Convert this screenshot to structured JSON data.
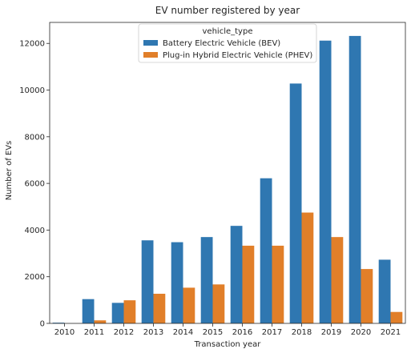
{
  "chart_data": {
    "type": "bar",
    "title": "EV number registered by year",
    "xlabel": "Transaction year",
    "ylabel": "Number of EVs",
    "categories": [
      "2010",
      "2011",
      "2012",
      "2013",
      "2014",
      "2015",
      "2016",
      "2017",
      "2018",
      "2019",
      "2020",
      "2021"
    ],
    "series": [
      {
        "name": "Battery Electric Vehicle (BEV)",
        "color": "#2f77b1",
        "values": [
          30,
          1040,
          880,
          3560,
          3480,
          3700,
          4180,
          6220,
          10280,
          12120,
          12320,
          2730
        ]
      },
      {
        "name": "Plug-in Hybrid Electric Vehicle (PHEV)",
        "color": "#e17f29",
        "values": [
          0,
          130,
          990,
          1270,
          1530,
          1670,
          3330,
          3330,
          4750,
          3700,
          2330,
          490
        ]
      }
    ],
    "ylim": [
      0,
      12900
    ],
    "yticks": [
      0,
      2000,
      4000,
      6000,
      8000,
      10000,
      12000
    ],
    "legend": {
      "title": "vehicle_type",
      "placement": "top-center"
    },
    "grid": false
  }
}
